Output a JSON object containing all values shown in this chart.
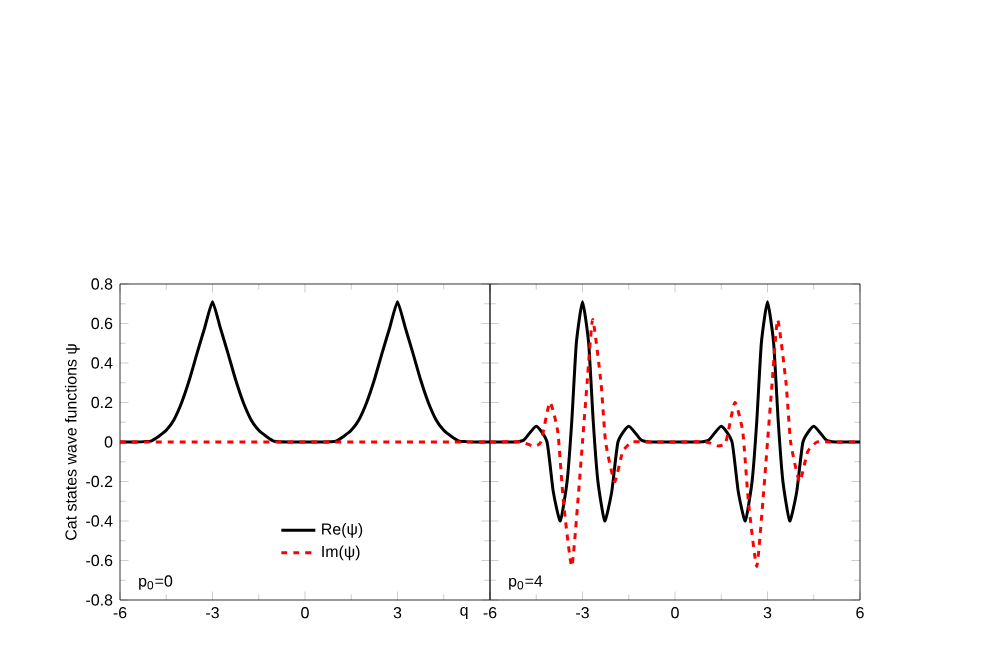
{
  "chart_data": [
    {
      "type": "line",
      "xlabel": "q",
      "ylabel": "Cat states wave functions ψ",
      "xlim": [
        -6,
        6
      ],
      "ylim": [
        -0.8,
        0.8
      ],
      "xticks": [
        -6,
        -3,
        0,
        3,
        {
          "value": 6,
          "label": null
        }
      ],
      "yticks": [
        -0.8,
        -0.6,
        -0.4,
        -0.2,
        0,
        0.2,
        0.4,
        0.6,
        0.8
      ],
      "legend": "bottom",
      "grid": false,
      "annotations": [
        "p$_{0}$=0"
      ],
      "series": [
        {
          "name": "Re(ψ)",
          "color": "#000000",
          "line_style": "solid",
          "x": [
            -6,
            -5.5,
            -5.2,
            -5,
            -4.75,
            -4.5,
            -4.25,
            -4,
            -3.75,
            -3.5,
            -3.25,
            -3,
            -2.75,
            -2.5,
            -2.25,
            -2,
            -1.75,
            -1.5,
            -1.25,
            -1,
            -0.5,
            0,
            0.5,
            1,
            1.25,
            1.5,
            1.75,
            2,
            2.25,
            2.5,
            2.75,
            3,
            3.25,
            3.5,
            3.75,
            4,
            4.25,
            4.5,
            4.75,
            5,
            5.2,
            5.5,
            6
          ],
          "values": [
            0,
            0,
            0.002,
            0.004,
            0.028,
            0.059,
            0.113,
            0.2,
            0.315,
            0.45,
            0.58,
            0.71,
            0.58,
            0.45,
            0.315,
            0.2,
            0.113,
            0.059,
            0.028,
            0.004,
            0,
            0,
            0,
            0.004,
            0.028,
            0.059,
            0.113,
            0.2,
            0.315,
            0.45,
            0.58,
            0.71,
            0.58,
            0.45,
            0.315,
            0.2,
            0.113,
            0.059,
            0.028,
            0.004,
            0.002,
            0,
            0
          ]
        },
        {
          "name": "Im(ψ)",
          "color": "#ff0000",
          "line_style": "dashed",
          "x": [
            -6,
            6
          ],
          "values": [
            0,
            0
          ]
        }
      ]
    },
    {
      "type": "line",
      "xlim": [
        -6,
        6
      ],
      "ylim": [
        -0.8,
        0.8
      ],
      "tick_labels": "x",
      "xticks": [
        -6,
        -3,
        0,
        3,
        6
      ],
      "yticks": [
        -0.8,
        -0.6,
        -0.4,
        -0.2,
        0,
        0.2,
        0.4,
        0.6,
        0.8
      ],
      "grid": false,
      "annotations": [
        "p$_{0}$=4"
      ],
      "series": [
        {
          "color": "#000000",
          "line_style": "solid",
          "x": [
            -6,
            -5.2,
            -4.9,
            -4.5,
            -4.15,
            -3.95,
            -3.72,
            -3.5,
            -3.35,
            -3.2,
            -3,
            -2.8,
            -2.65,
            -2.5,
            -2.28,
            -2.05,
            -1.85,
            -1.5,
            -1.1,
            -0.8,
            0,
            0.8,
            1.1,
            1.5,
            1.85,
            2.05,
            2.28,
            2.5,
            2.65,
            2.8,
            3,
            3.2,
            3.35,
            3.5,
            3.72,
            3.95,
            4.15,
            4.5,
            4.9,
            5.2,
            6
          ],
          "values": [
            0,
            0,
            0.01,
            0.08,
            0,
            -0.25,
            -0.4,
            -0.2,
            0.1,
            0.5,
            0.71,
            0.5,
            0.1,
            -0.2,
            -0.4,
            -0.25,
            0,
            0.08,
            0.01,
            0,
            0,
            0,
            0.01,
            0.08,
            0,
            -0.25,
            -0.4,
            -0.2,
            0.1,
            0.5,
            0.71,
            0.5,
            0.1,
            -0.2,
            -0.4,
            -0.25,
            0,
            0.08,
            0.01,
            0,
            0
          ]
        },
        {
          "color": "#ff0000",
          "line_style": "dashed",
          "x": [
            -6,
            -5,
            -4.6,
            -4.35,
            -4.06,
            -3.8,
            -3.62,
            -3.35,
            -3.15,
            -3,
            -2.85,
            -2.67,
            -2.4,
            -2.25,
            -1.96,
            -1.7,
            -1.4,
            -1,
            0,
            1,
            1.4,
            1.65,
            1.94,
            2.2,
            2.38,
            2.65,
            2.85,
            3,
            3.15,
            3.33,
            3.6,
            3.75,
            4.04,
            4.3,
            4.6,
            5,
            6
          ],
          "values": [
            0,
            0,
            -0.02,
            0,
            0.2,
            0.05,
            -0.3,
            -0.63,
            -0.3,
            0,
            0.3,
            0.62,
            0.3,
            0,
            -0.2,
            -0.05,
            0,
            0,
            0,
            0,
            -0.02,
            0,
            0.2,
            0.05,
            -0.3,
            -0.63,
            -0.3,
            0,
            0.3,
            0.62,
            0.3,
            0,
            -0.2,
            -0.05,
            0,
            0,
            0
          ]
        }
      ]
    }
  ]
}
